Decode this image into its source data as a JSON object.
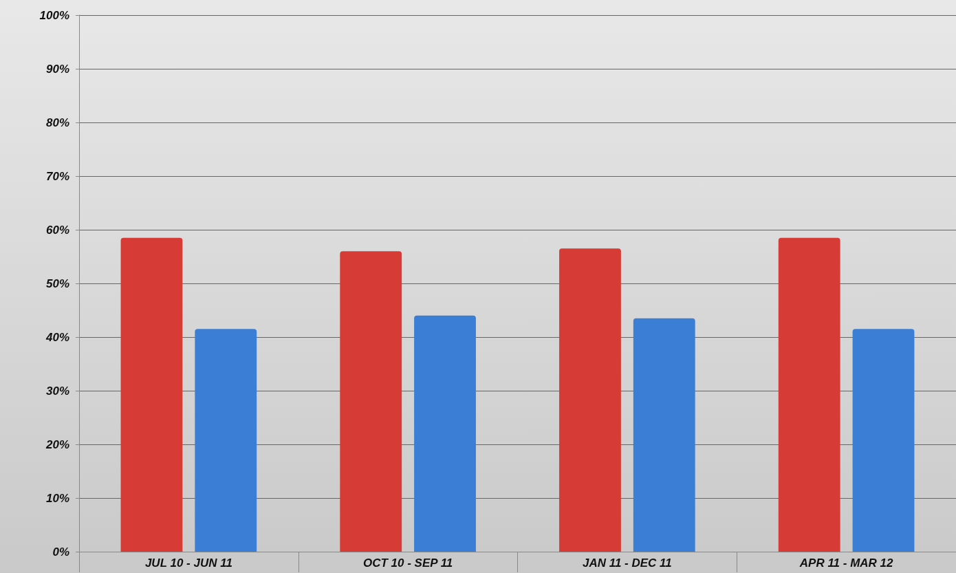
{
  "chart_data": {
    "type": "bar",
    "categories": [
      "JUL 10 - JUN 11",
      "OCT 10 - SEP 11",
      "JAN 11 - DEC 11",
      "APR 11 - MAR 12"
    ],
    "series": [
      {
        "color": "#d63c35",
        "values": [
          58.5,
          56,
          56.5,
          58.5
        ]
      },
      {
        "color": "#3a7fd5",
        "values": [
          41.5,
          44,
          43.5,
          41.5
        ]
      }
    ],
    "ylim": [
      0,
      100
    ],
    "yticks": [
      {
        "value": 0,
        "label": "0%"
      },
      {
        "value": 10,
        "label": "10%"
      },
      {
        "value": 20,
        "label": "20%"
      },
      {
        "value": 30,
        "label": "30%"
      },
      {
        "value": 40,
        "label": "40%"
      },
      {
        "value": 50,
        "label": "50%"
      },
      {
        "value": 60,
        "label": "60%"
      },
      {
        "value": 70,
        "label": "70%"
      },
      {
        "value": 80,
        "label": "80%"
      },
      {
        "value": 90,
        "label": "90%"
      },
      {
        "value": 100,
        "label": "100%"
      }
    ],
    "grid": "y"
  }
}
